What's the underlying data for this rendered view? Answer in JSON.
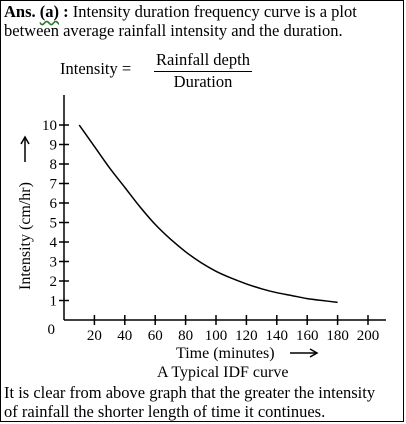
{
  "answer": {
    "label": "Ans.",
    "part": "(a)",
    "colon": ":",
    "line1": "Intensity duration frequency curve is a plot",
    "line2": "between average rainfall intensity and the duration."
  },
  "formula": {
    "lhs": "Intensity =",
    "numerator": "Rainfall depth",
    "denominator": "Duration"
  },
  "chart_data": {
    "type": "line",
    "title": "",
    "caption": "A Typical IDF curve",
    "xlabel": "Time (minutes)",
    "ylabel": "Intensity (cm/hr)",
    "xlim": [
      0,
      200
    ],
    "ylim": [
      0,
      10
    ],
    "xticks": [
      20,
      40,
      60,
      80,
      100,
      120,
      140,
      160,
      180,
      200
    ],
    "yticks": [
      1,
      2,
      3,
      4,
      5,
      6,
      7,
      8,
      9,
      10
    ],
    "origin_label": "0",
    "grid": false,
    "series": [
      {
        "x": [
          10,
          20,
          30,
          40,
          50,
          60,
          70,
          80,
          90,
          100,
          110,
          120,
          130,
          140,
          150,
          160,
          170,
          180
        ],
        "y": [
          10.0,
          8.9,
          7.8,
          6.8,
          5.8,
          4.9,
          4.15,
          3.5,
          2.95,
          2.5,
          2.15,
          1.85,
          1.6,
          1.4,
          1.25,
          1.1,
          1.0,
          0.9
        ]
      }
    ]
  },
  "conclusion": {
    "line1": "It is clear from above graph that the greater the intensity",
    "line2": "of rainfall the shorter length of time it continues."
  }
}
